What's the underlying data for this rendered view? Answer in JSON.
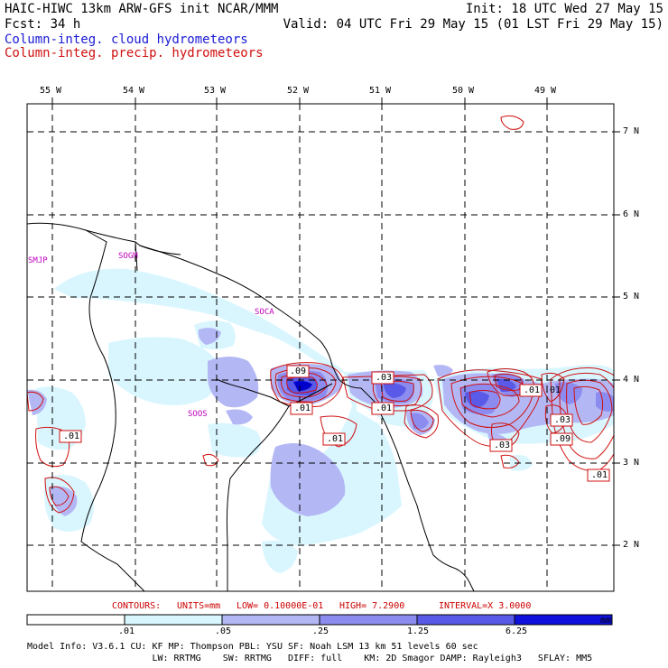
{
  "header": {
    "line1_left": "HAIC-HIWC 13km ARW-GFS init   NCAR/MMM",
    "line1_right": "Init: 18 UTC Wed 27 May 15",
    "line2_left": "Fcst:   34 h",
    "line2_right": "Valid: 04 UTC Fri 29 May 15 (01 LST Fri 29 May 15)"
  },
  "legend": {
    "cloud": "Column-integ. cloud hydrometeors",
    "precip": "Column-integ. precip. hydrometeors",
    "cloud_color": "#1a1ad6",
    "precip_color": "#d01010"
  },
  "map": {
    "longitude_labels": [
      "55 W",
      "54 W",
      "53 W",
      "52 W",
      "51 W",
      "50 W",
      "49 W"
    ],
    "latitude_labels": [
      "7 N",
      "6 N",
      "5 N",
      "4 N",
      "3 N",
      "2 N"
    ],
    "stations": [
      "SMJP",
      "SOGM",
      "SOCA",
      "SOOS"
    ],
    "contour_labels": [
      ".09",
      ".01",
      ".03",
      ".01",
      ".01",
      ".01",
      ".01",
      ".03",
      ".03",
      ".09",
      ".01",
      ".01"
    ],
    "ocean_color": "#ffffff",
    "shade_colors": [
      "#d9f6ff",
      "#b3b8f5",
      "#8c8cf0",
      "#5a5ae8",
      "#2020e0",
      "#0000cc"
    ]
  },
  "contours_info": {
    "label": "CONTOURS:",
    "units": "UNITS=mm",
    "low": "LOW= 0.10000E-01",
    "high": "HIGH=  7.2900",
    "interval": "INTERVAL=X  3.0000"
  },
  "colorbar": {
    "ticks": [
      ".01",
      ".05",
      ".25",
      "1.25",
      "6.25"
    ],
    "units": "mm",
    "colors": [
      "#ffffff",
      "#d9f6ff",
      "#b3b8f5",
      "#8c8cf0",
      "#5a5ae8",
      "#2020e0",
      "#0000cc"
    ]
  },
  "model_info": {
    "line1": "Model Info: V3.6.1    CU: KF      MP: Thompson     PBL: YSU       SF: Noah LSM     13 km    51 levels   60 sec",
    "line2": "                       LW: RRTMG    SW: RRTMG   DIFF: full    KM: 2D Smagor DAMP: Rayleigh3   SFLAY: MM5"
  }
}
